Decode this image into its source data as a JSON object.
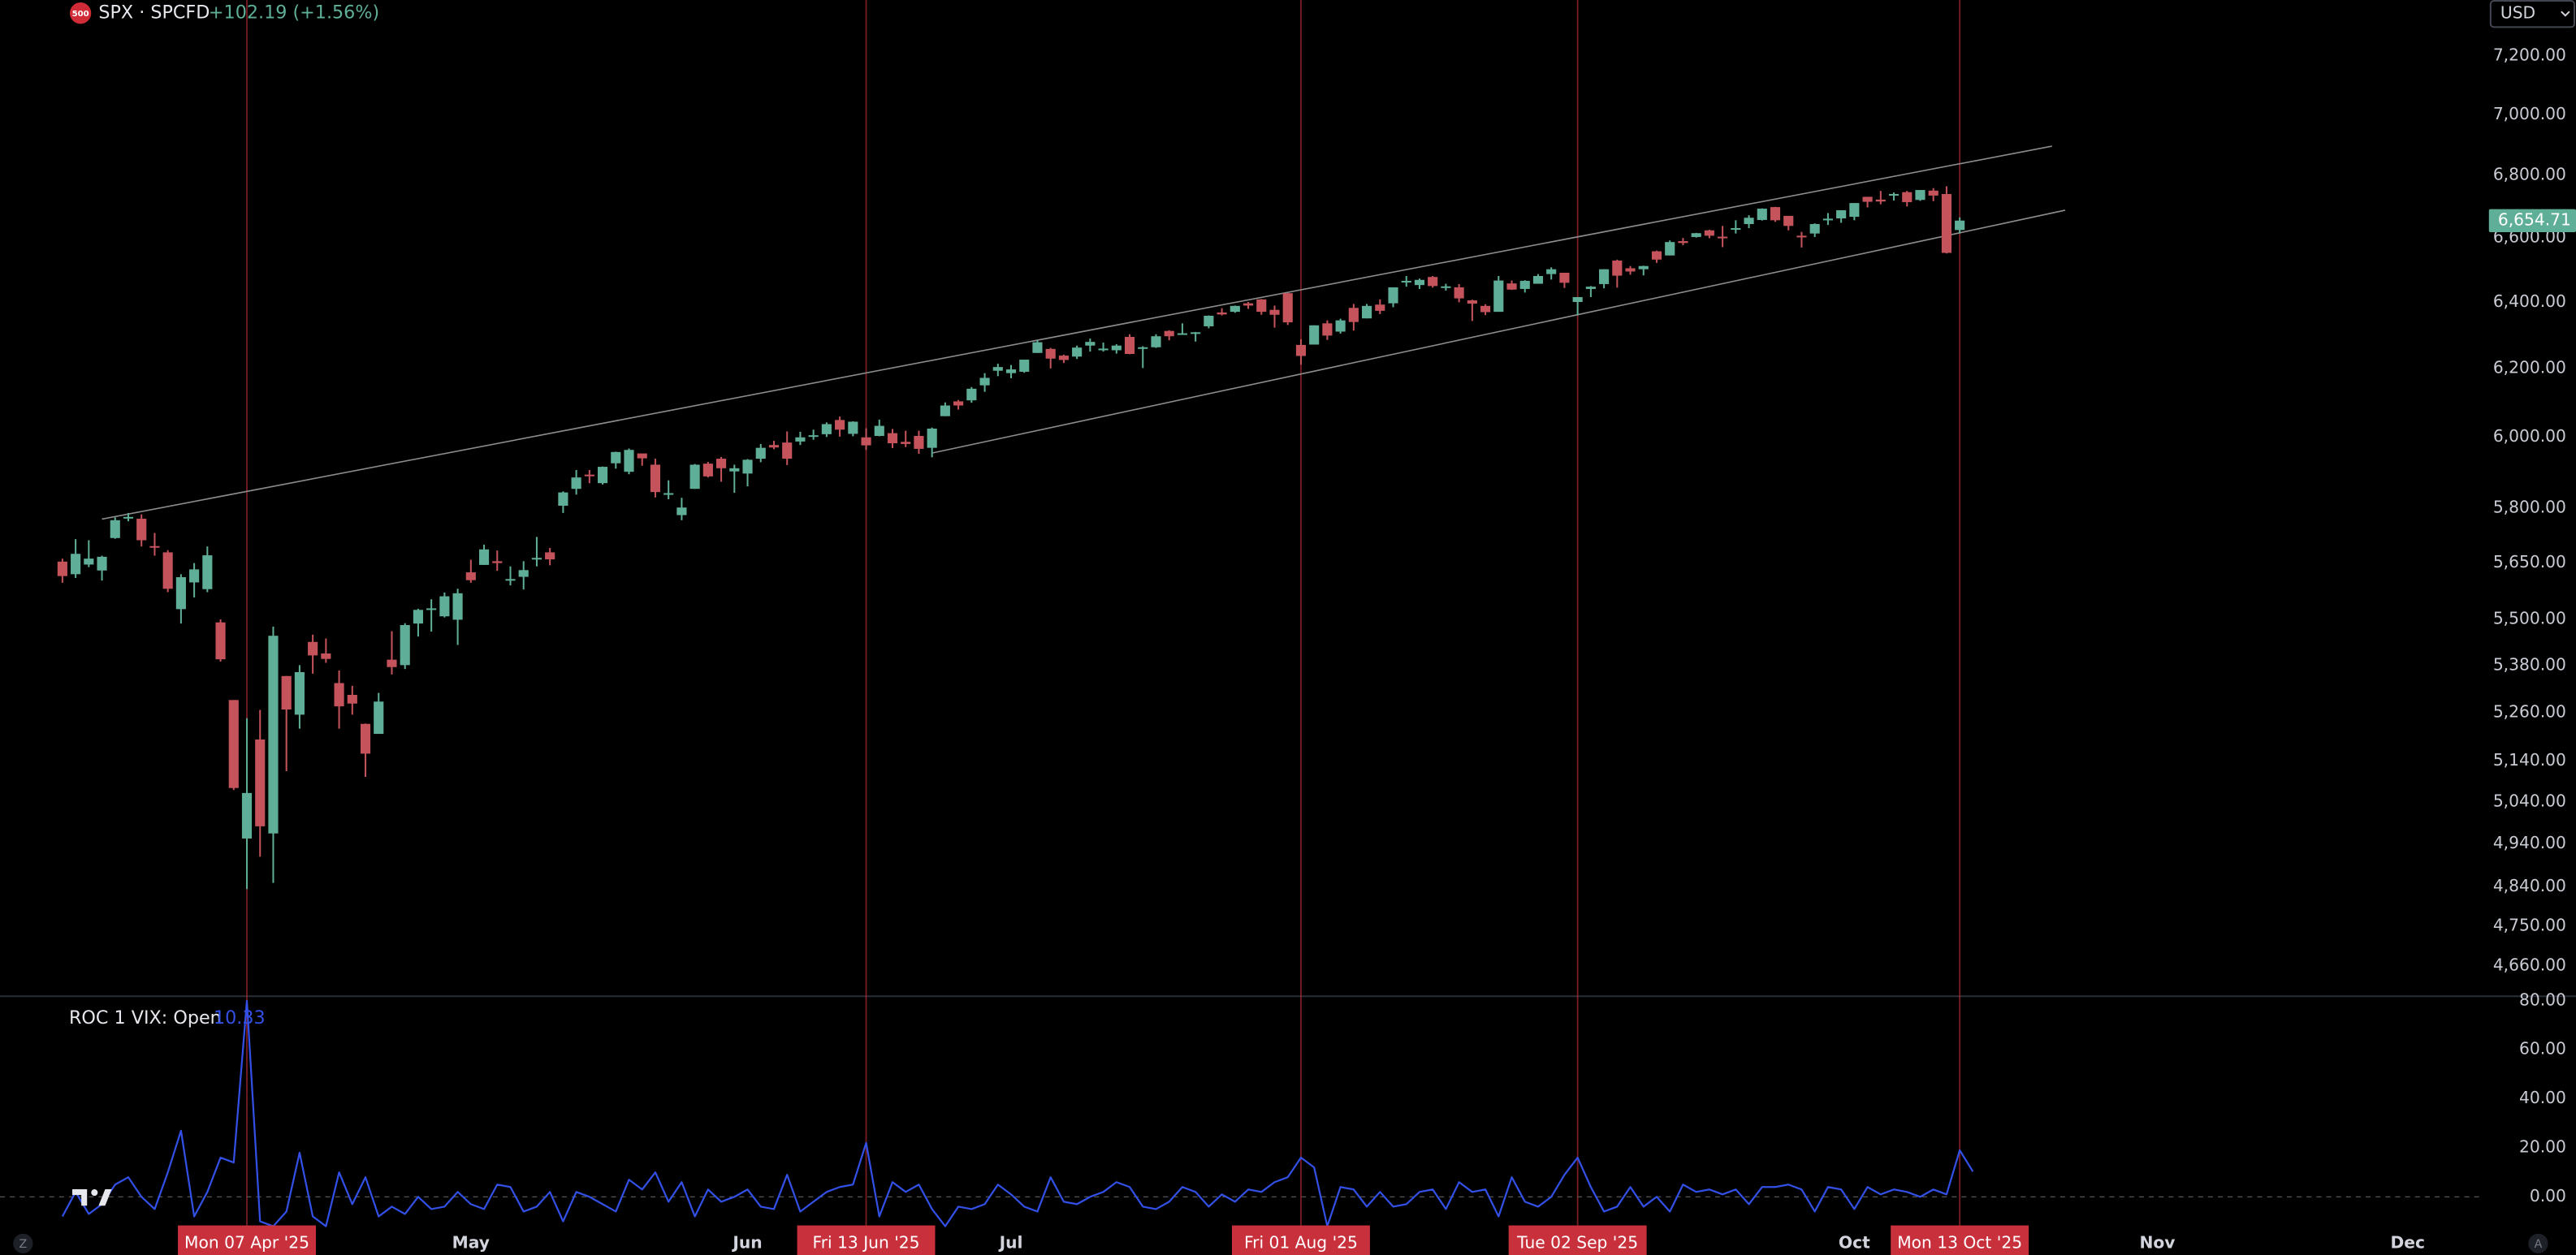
{
  "ui": {
    "left_button": "Z",
    "right_button": "A"
  },
  "chart_data": {
    "type": "candlestick",
    "badge": "500",
    "symbol": "SPX · SPCFD",
    "change_label": "+102.19 (+1.56%)",
    "currency": "USD",
    "log_scale": true,
    "grid": false,
    "up_color": "#5fae97",
    "down_color": "#c4535c",
    "marker_color": "#c8303c",
    "ylim": [
      4595,
      7395
    ],
    "yticks": [
      {
        "value": 4660,
        "label": "4,660.00"
      },
      {
        "value": 4750,
        "label": "4,750.00"
      },
      {
        "value": 4840,
        "label": "4,840.00"
      },
      {
        "value": 4940,
        "label": "4,940.00"
      },
      {
        "value": 5040,
        "label": "5,040.00"
      },
      {
        "value": 5140,
        "label": "5,140.00"
      },
      {
        "value": 5260,
        "label": "5,260.00"
      },
      {
        "value": 5380,
        "label": "5,380.00"
      },
      {
        "value": 5500,
        "label": "5,500.00"
      },
      {
        "value": 5650,
        "label": "5,650.00"
      },
      {
        "value": 5800,
        "label": "5,800.00"
      },
      {
        "value": 6000,
        "label": "6,000.00"
      },
      {
        "value": 6200,
        "label": "6,200.00"
      },
      {
        "value": 6400,
        "label": "6,400.00"
      },
      {
        "value": 6600,
        "label": "6,600.00"
      },
      {
        "value": 6800,
        "label": "6,800.00"
      },
      {
        "value": 7000,
        "label": "7,000.00"
      },
      {
        "value": 7200,
        "label": "7,200.00"
      }
    ],
    "last_price": {
      "value": 6654.71,
      "label": "6,654.71"
    },
    "categories": [
      null,
      null,
      null,
      null,
      null,
      null,
      null,
      null,
      null,
      null,
      null,
      null,
      null,
      null,
      "Mon 07 Apr '25",
      null,
      null,
      null,
      null,
      null,
      null,
      null,
      null,
      null,
      null,
      null,
      null,
      null,
      null,
      null,
      null,
      "May",
      null,
      null,
      null,
      null,
      null,
      null,
      null,
      null,
      null,
      null,
      null,
      null,
      null,
      null,
      null,
      null,
      null,
      null,
      null,
      null,
      "Jun",
      null,
      null,
      null,
      null,
      null,
      null,
      null,
      null,
      "Fri 13 Jun '25",
      null,
      null,
      null,
      null,
      null,
      null,
      null,
      null,
      null,
      null,
      "Jul",
      null,
      null,
      null,
      null,
      null,
      null,
      null,
      null,
      null,
      null,
      null,
      null,
      null,
      null,
      null,
      null,
      null,
      null,
      null,
      null,
      null,
      "Fri 01 Aug '25",
      null,
      null,
      null,
      null,
      null,
      null,
      null,
      null,
      null,
      null,
      null,
      null,
      null,
      null,
      null,
      null,
      null,
      null,
      null,
      null,
      "Tue 02 Sep '25",
      null,
      null,
      null,
      null,
      null,
      null,
      null,
      null,
      null,
      null,
      null,
      null,
      null,
      null,
      null,
      null,
      null,
      null,
      null,
      null,
      "Oct",
      null,
      null,
      null,
      null,
      null,
      null,
      null,
      "Mon 13 Oct '25",
      null,
      null,
      null,
      null,
      null,
      null,
      null,
      null,
      null,
      null,
      null,
      null,
      null,
      null,
      "Nov",
      null,
      null,
      null,
      null,
      null,
      null,
      null,
      null,
      null,
      null,
      null,
      null,
      null,
      null,
      null,
      null,
      null,
      null,
      "Dec"
    ],
    "ohlc": [
      [
        5654,
        5662,
        5597,
        5615
      ],
      [
        5620,
        5715,
        5610,
        5675
      ],
      [
        5646,
        5712,
        5639,
        5662
      ],
      [
        5630,
        5670,
        5603,
        5667
      ],
      [
        5718,
        5775,
        5716,
        5767
      ],
      [
        5775,
        5787,
        5764,
        5776
      ],
      [
        5771,
        5783,
        5695,
        5712
      ],
      [
        5696,
        5732,
        5670,
        5693
      ],
      [
        5679,
        5685,
        5572,
        5581
      ],
      [
        5527,
        5620,
        5489,
        5612
      ],
      [
        5598,
        5650,
        5558,
        5633
      ],
      [
        5580,
        5695,
        5572,
        5671
      ],
      [
        5492,
        5500,
        5390,
        5396
      ],
      [
        5292,
        5292,
        5069,
        5074
      ],
      [
        4953,
        5246,
        4835,
        5062
      ],
      [
        5193,
        5267,
        4910,
        4982
      ],
      [
        4965,
        5481,
        4849,
        5457
      ],
      [
        5353,
        5353,
        5115,
        5268
      ],
      [
        5255,
        5381,
        5220,
        5363
      ],
      [
        5441,
        5460,
        5359,
        5406
      ],
      [
        5411,
        5450,
        5387,
        5397
      ],
      [
        5335,
        5367,
        5220,
        5276
      ],
      [
        5305,
        5328,
        5255,
        5283
      ],
      [
        5232,
        5233,
        5101,
        5158
      ],
      [
        5207,
        5310,
        5207,
        5288
      ],
      [
        5395,
        5469,
        5357,
        5376
      ],
      [
        5381,
        5490,
        5371,
        5485
      ],
      [
        5489,
        5528,
        5455,
        5525
      ],
      [
        5529,
        5553,
        5468,
        5529
      ],
      [
        5508,
        5571,
        5505,
        5561
      ],
      [
        5499,
        5581,
        5433,
        5569
      ],
      [
        5625,
        5659,
        5597,
        5604
      ],
      [
        5645,
        5700,
        5645,
        5687
      ],
      [
        5655,
        5684,
        5629,
        5650
      ],
      [
        5605,
        5641,
        5590,
        5607
      ],
      [
        5613,
        5655,
        5579,
        5631
      ],
      [
        5663,
        5721,
        5641,
        5664
      ],
      [
        5679,
        5691,
        5644,
        5660
      ],
      [
        5807,
        5847,
        5787,
        5844
      ],
      [
        5854,
        5907,
        5838,
        5886
      ],
      [
        5894,
        5907,
        5870,
        5892
      ],
      [
        5870,
        5917,
        5866,
        5916
      ],
      [
        5926,
        5959,
        5911,
        5958
      ],
      [
        5902,
        5968,
        5895,
        5964
      ],
      [
        5954,
        5953,
        5919,
        5940
      ],
      [
        5922,
        5939,
        5830,
        5845
      ],
      [
        5838,
        5878,
        5825,
        5842
      ],
      [
        5781,
        5829,
        5767,
        5802
      ],
      [
        5854,
        5924,
        5854,
        5922
      ],
      [
        5925,
        5930,
        5886,
        5889
      ],
      [
        5939,
        5944,
        5874,
        5912
      ],
      [
        5903,
        5922,
        5843,
        5912
      ],
      [
        5897,
        5938,
        5861,
        5936
      ],
      [
        5939,
        5981,
        5929,
        5970
      ],
      [
        5978,
        5990,
        5966,
        5971
      ],
      [
        5985,
        6017,
        5921,
        5939
      ],
      [
        5988,
        6016,
        5978,
        6000
      ],
      [
        6005,
        6022,
        5993,
        6006
      ],
      [
        6009,
        6043,
        6001,
        6038
      ],
      [
        6050,
        6060,
        6002,
        6022
      ],
      [
        6010,
        6046,
        6003,
        6045
      ],
      [
        6000,
        6026,
        5964,
        5977
      ],
      [
        6004,
        6051,
        6003,
        6033
      ],
      [
        6012,
        6024,
        5969,
        5983
      ],
      [
        5987,
        6019,
        5972,
        5981
      ],
      [
        6004,
        6019,
        5953,
        5967
      ],
      [
        5970,
        6028,
        5943,
        6025
      ],
      [
        6061,
        6101,
        6061,
        6092
      ],
      [
        6104,
        6108,
        6080,
        6092
      ],
      [
        6107,
        6146,
        6100,
        6141
      ],
      [
        6151,
        6187,
        6132,
        6173
      ],
      [
        6194,
        6215,
        6178,
        6205
      ],
      [
        6187,
        6211,
        6172,
        6198
      ],
      [
        6191,
        6227,
        6188,
        6227
      ],
      [
        6247,
        6285,
        6247,
        6279
      ],
      [
        6259,
        6262,
        6201,
        6230
      ],
      [
        6239,
        6242,
        6217,
        6226
      ],
      [
        6236,
        6269,
        6229,
        6263
      ],
      [
        6269,
        6290,
        6251,
        6280
      ],
      [
        6255,
        6278,
        6251,
        6260
      ],
      [
        6255,
        6273,
        6245,
        6269
      ],
      [
        6295,
        6303,
        6243,
        6244
      ],
      [
        6261,
        6267,
        6202,
        6264
      ],
      [
        6264,
        6303,
        6262,
        6297
      ],
      [
        6313,
        6315,
        6285,
        6297
      ],
      [
        6304,
        6336,
        6303,
        6306
      ],
      [
        6307,
        6310,
        6281,
        6309
      ],
      [
        6327,
        6360,
        6321,
        6359
      ],
      [
        6369,
        6382,
        6360,
        6363
      ],
      [
        6371,
        6390,
        6368,
        6389
      ],
      [
        6397,
        6401,
        6380,
        6390
      ],
      [
        6409,
        6410,
        6362,
        6371
      ],
      [
        6377,
        6390,
        6323,
        6362
      ],
      [
        6428,
        6428,
        6331,
        6339
      ],
      [
        6271,
        6288,
        6212,
        6238
      ],
      [
        6272,
        6330,
        6272,
        6330
      ],
      [
        6336,
        6345,
        6286,
        6299
      ],
      [
        6311,
        6350,
        6305,
        6345
      ],
      [
        6383,
        6395,
        6314,
        6340
      ],
      [
        6351,
        6395,
        6351,
        6389
      ],
      [
        6393,
        6409,
        6364,
        6374
      ],
      [
        6397,
        6446,
        6385,
        6446
      ],
      [
        6462,
        6481,
        6448,
        6466
      ],
      [
        6453,
        6473,
        6441,
        6469
      ],
      [
        6478,
        6481,
        6445,
        6450
      ],
      [
        6445,
        6457,
        6436,
        6449
      ],
      [
        6446,
        6456,
        6400,
        6412
      ],
      [
        6406,
        6408,
        6343,
        6396
      ],
      [
        6389,
        6394,
        6361,
        6370
      ],
      [
        6371,
        6481,
        6371,
        6467
      ],
      [
        6458,
        6467,
        6438,
        6439
      ],
      [
        6441,
        6468,
        6430,
        6466
      ],
      [
        6457,
        6487,
        6457,
        6481
      ],
      [
        6487,
        6508,
        6470,
        6502
      ],
      [
        6491,
        6491,
        6444,
        6460
      ],
      [
        6401,
        6416,
        6360,
        6416
      ],
      [
        6441,
        6450,
        6416,
        6448
      ],
      [
        6456,
        6502,
        6443,
        6502
      ],
      [
        6529,
        6532,
        6445,
        6482
      ],
      [
        6505,
        6512,
        6485,
        6495
      ],
      [
        6502,
        6513,
        6483,
        6512
      ],
      [
        6558,
        6560,
        6522,
        6532
      ],
      [
        6545,
        6592,
        6545,
        6587
      ],
      [
        6590,
        6600,
        6577,
        6584
      ],
      [
        6603,
        6616,
        6601,
        6615
      ],
      [
        6624,
        6626,
        6599,
        6607
      ],
      [
        6604,
        6638,
        6571,
        6600
      ],
      [
        6630,
        6656,
        6614,
        6631
      ],
      [
        6644,
        6672,
        6631,
        6664
      ],
      [
        6657,
        6694,
        6655,
        6693
      ],
      [
        6698,
        6699,
        6651,
        6656
      ],
      [
        6670,
        6670,
        6624,
        6638
      ],
      [
        6607,
        6619,
        6570,
        6605
      ],
      [
        6614,
        6646,
        6603,
        6644
      ],
      [
        6661,
        6679,
        6641,
        6661
      ],
      [
        6662,
        6688,
        6648,
        6688
      ],
      [
        6667,
        6711,
        6656,
        6711
      ],
      [
        6731,
        6731,
        6697,
        6715
      ],
      [
        6722,
        6750,
        6707,
        6716
      ],
      [
        6740,
        6745,
        6719,
        6740
      ],
      [
        6746,
        6750,
        6700,
        6714
      ],
      [
        6721,
        6753,
        6718,
        6753
      ],
      [
        6751,
        6759,
        6717,
        6735
      ],
      [
        6740,
        6765,
        6551,
        6553
      ],
      [
        6625,
        6665,
        6614,
        6655
      ],
      null,
      null,
      null,
      null,
      null,
      null,
      null,
      null,
      null,
      null,
      null,
      null,
      null,
      null,
      null,
      null,
      null,
      null,
      null,
      null,
      null,
      null,
      null,
      null,
      null,
      null,
      null,
      null,
      null,
      null,
      null,
      null,
      null,
      null
    ],
    "trend_lines": [
      {
        "color": "#8c8c8c",
        "points": [
          [
            3,
            5770
          ],
          [
            151,
            6896
          ]
        ]
      },
      {
        "color": "#8c8c8c",
        "points": [
          [
            66,
            5955
          ],
          [
            152,
            6688
          ]
        ]
      }
    ],
    "indicator": {
      "type": "line",
      "title": "ROC 1 VIX: Open",
      "last_value": 10.33,
      "color": "#3350e6",
      "ylim": [
        -11,
        81.5
      ],
      "yticks": [
        {
          "value": 0,
          "label": "0.00"
        },
        {
          "value": 20,
          "label": "20.00"
        },
        {
          "value": 40,
          "label": "40.00"
        },
        {
          "value": 60,
          "label": "60.00"
        },
        {
          "value": 80,
          "label": "80.00"
        }
      ],
      "zero_line": true,
      "values": [
        -8,
        2,
        -7,
        -3,
        5,
        8,
        0,
        -5,
        10,
        27,
        -8,
        2,
        16,
        14,
        80,
        -10,
        -12,
        -6,
        18,
        -8,
        -12,
        10,
        -3,
        8,
        -8,
        -4,
        -7,
        0,
        -5,
        -4,
        2,
        -3,
        -5,
        5,
        4,
        -6,
        -4,
        2,
        -10,
        2,
        0,
        -3,
        -6,
        7,
        3,
        10,
        -2,
        6,
        -8,
        3,
        -2,
        0,
        3,
        -4,
        -5,
        9,
        -6,
        -2,
        2,
        4,
        5,
        22,
        -8,
        6,
        2,
        5,
        -5,
        -12,
        -4,
        -5,
        -3,
        5,
        1,
        -4,
        -6,
        8,
        -2,
        -3,
        0,
        2,
        6,
        4,
        -4,
        -5,
        -2,
        4,
        2,
        -4,
        1,
        -2,
        3,
        2,
        6,
        8,
        16,
        12,
        -12,
        4,
        3,
        -4,
        2,
        -4,
        -3,
        2,
        3,
        -5,
        6,
        2,
        3,
        -8,
        8,
        -2,
        -4,
        0,
        9,
        16,
        4,
        -6,
        -4,
        4,
        -4,
        0,
        -6,
        5,
        2,
        3,
        1,
        3,
        -3,
        4,
        4,
        5,
        3,
        -6,
        4,
        3,
        -5,
        4,
        1,
        3,
        2,
        0,
        3,
        1,
        19,
        10.33,
        null,
        null,
        null,
        null,
        null,
        null,
        null,
        null,
        null,
        null,
        null,
        null,
        null,
        null,
        null,
        null,
        null,
        null,
        null,
        null,
        null,
        null,
        null,
        null,
        null,
        null,
        null,
        null,
        null,
        null,
        null,
        null,
        null
      ]
    }
  }
}
